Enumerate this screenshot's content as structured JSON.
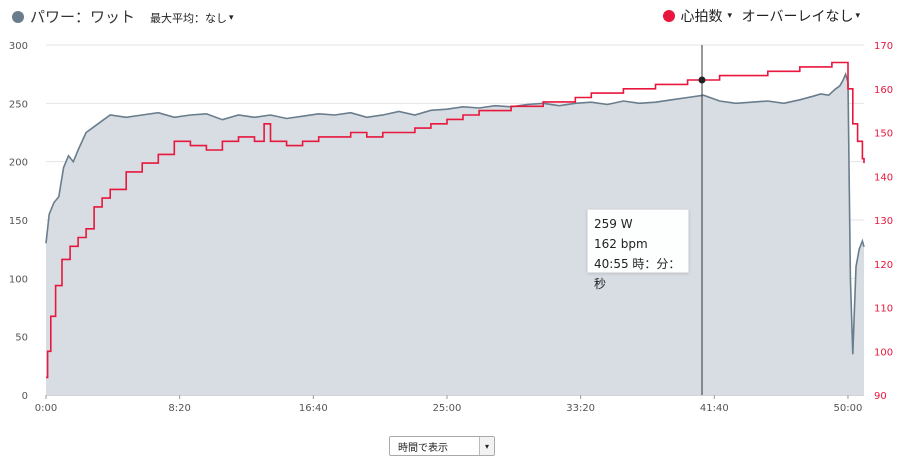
{
  "header": {
    "power_label": "パワー：ワット",
    "max_avg_label": "最大平均：なし",
    "hr_label": "心拍数",
    "overlay_label": "オーバーレイなし",
    "caret": "▾"
  },
  "colors": {
    "power": "#6a7d8c",
    "power_fill": "#d7dde3",
    "hr": "#e8173d",
    "grid": "#e4e4e4"
  },
  "tooltip": {
    "power": "259 W",
    "hr": "162 bpm",
    "time": "40:55 時：分：秒"
  },
  "footer": {
    "select_value": "時間で表示",
    "select_arrow": "▾"
  },
  "chart_data": {
    "type": "line",
    "x_unit": "minutes",
    "xlim": [
      0,
      51
    ],
    "x_ticks": [
      "0:00",
      "8:20",
      "16:40",
      "25:00",
      "33:20",
      "41:40",
      "50:00"
    ],
    "y_left": {
      "ylim": [
        0,
        300
      ],
      "ticks": [
        "0",
        "50",
        "100",
        "150",
        "200",
        "250",
        "300"
      ]
    },
    "y_right": {
      "ylim": [
        90,
        170
      ],
      "ticks": [
        "90",
        "100",
        "110",
        "120",
        "130",
        "140",
        "150",
        "160",
        "170"
      ]
    },
    "cursor_x": 40.9,
    "series": [
      {
        "name": "パワー：ワット",
        "axis": "left",
        "x": [
          0,
          0.2,
          0.5,
          0.8,
          1.1,
          1.4,
          1.7,
          2.0,
          2.5,
          3.0,
          3.5,
          4.0,
          5.0,
          6.0,
          7.0,
          8.0,
          9.0,
          10.0,
          11.0,
          12.0,
          13.0,
          14.0,
          15.0,
          16.0,
          17.0,
          18.0,
          19.0,
          20.0,
          21.0,
          22.0,
          23.0,
          24.0,
          25.0,
          26.0,
          27.0,
          28.0,
          29.0,
          30.0,
          31.0,
          32.0,
          33.0,
          34.0,
          35.0,
          36.0,
          37.0,
          38.0,
          39.0,
          40.0,
          41.0,
          42.0,
          43.0,
          44.0,
          45.0,
          46.0,
          47.0,
          47.8,
          48.3,
          48.8,
          49.2,
          49.5,
          49.7,
          49.85,
          50.0,
          50.15,
          50.3,
          50.5,
          50.7,
          50.9,
          51.0
        ],
        "values": [
          130,
          155,
          165,
          170,
          195,
          205,
          200,
          210,
          225,
          230,
          235,
          240,
          238,
          240,
          242,
          238,
          240,
          241,
          236,
          240,
          238,
          240,
          237,
          239,
          241,
          240,
          242,
          238,
          240,
          243,
          240,
          244,
          245,
          247,
          246,
          248,
          247,
          249,
          250,
          248,
          250,
          251,
          249,
          252,
          250,
          251,
          253,
          255,
          257,
          252,
          250,
          251,
          252,
          250,
          253,
          256,
          258,
          257,
          262,
          265,
          270,
          275,
          268,
          100,
          35,
          110,
          125,
          132,
          127
        ]
      },
      {
        "name": "心拍数",
        "axis": "right",
        "x": [
          0,
          0.1,
          0.3,
          0.6,
          1.0,
          1.5,
          2.0,
          2.5,
          3.0,
          3.5,
          4.0,
          5.0,
          6.0,
          7.0,
          8.0,
          9.0,
          10.0,
          11.0,
          12.0,
          13.0,
          13.6,
          14.0,
          15.0,
          16.0,
          17.0,
          18.0,
          19.0,
          20.0,
          21.0,
          22.0,
          23.0,
          24.0,
          25.0,
          26.0,
          27.0,
          28.0,
          29.0,
          30.0,
          31.0,
          32.0,
          33.0,
          34.0,
          35.0,
          36.0,
          37.0,
          38.0,
          39.0,
          40.0,
          41.0,
          42.0,
          43.0,
          44.0,
          45.0,
          46.0,
          47.0,
          48.0,
          49.0,
          49.6,
          50.0,
          50.3,
          50.6,
          50.9,
          51.0
        ],
        "values": [
          94,
          100,
          108,
          115,
          121,
          124,
          126,
          128,
          133,
          135,
          137,
          141,
          143,
          145,
          148,
          147,
          146,
          148,
          149,
          148,
          152,
          148,
          147,
          148,
          149,
          149,
          150,
          149,
          150,
          150,
          151,
          152,
          153,
          154,
          155,
          155,
          156,
          156,
          157,
          157,
          158,
          159,
          159,
          160,
          160,
          161,
          161,
          162,
          162,
          163,
          163,
          163,
          164,
          164,
          165,
          165,
          166,
          166,
          160,
          152,
          148,
          144,
          143
        ]
      }
    ]
  }
}
